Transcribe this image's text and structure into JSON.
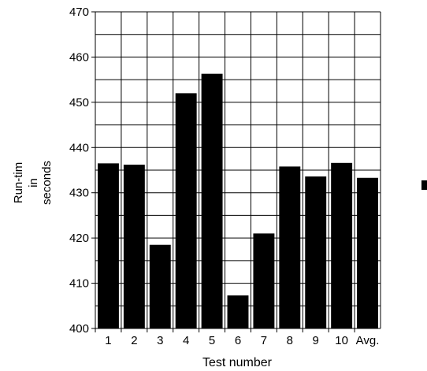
{
  "chart_data": {
    "type": "bar",
    "categories": [
      "1",
      "2",
      "3",
      "4",
      "5",
      "6",
      "7",
      "8",
      "9",
      "10",
      "Avg."
    ],
    "values": [
      436.5,
      436.2,
      418.5,
      452.0,
      456.3,
      407.3,
      421.0,
      435.8,
      433.6,
      436.6,
      433.3
    ],
    "xlabel": "Test number",
    "ylabel_lines": [
      "Run-tim",
      "in",
      "seconds"
    ],
    "ylim": [
      400,
      470
    ],
    "yticks": [
      400,
      410,
      420,
      430,
      440,
      450,
      460,
      470
    ],
    "bar_color": "#000000",
    "grid": true,
    "minor_grid_step": 5
  }
}
